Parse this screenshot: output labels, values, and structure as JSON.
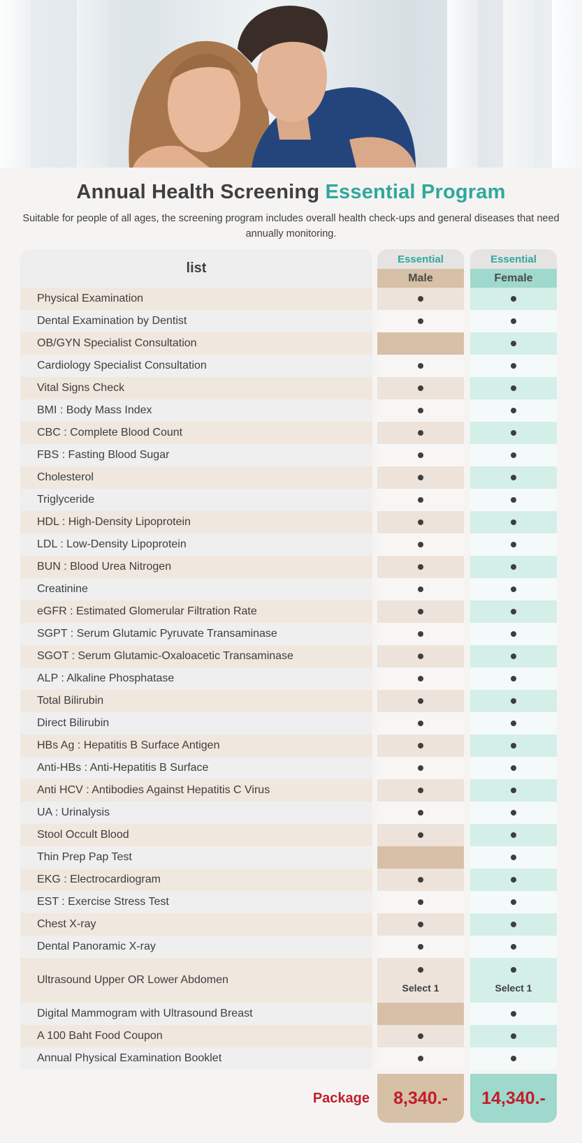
{
  "title": {
    "part1": "Annual Health Screening",
    "part2": "Essential Program"
  },
  "subtitle": "Suitable for people of all ages, the screening program includes overall health check-ups and general diseases that need annually monitoring.",
  "table": {
    "list_header": "list",
    "columns": [
      {
        "program": "Essential",
        "gender": "Male"
      },
      {
        "program": "Essential",
        "gender": "Female"
      }
    ],
    "rows": [
      {
        "label": "Physical Examination",
        "male": true,
        "female": true
      },
      {
        "label": "Dental Examination by Dentist",
        "male": true,
        "female": true
      },
      {
        "label": "OB/GYN Specialist Consultation",
        "male": false,
        "female": true
      },
      {
        "label": "Cardiology Specialist Consultation",
        "male": true,
        "female": true
      },
      {
        "label": "Vital Signs Check",
        "male": true,
        "female": true
      },
      {
        "label": "BMI : Body Mass Index",
        "male": true,
        "female": true
      },
      {
        "label": "CBC : Complete Blood Count",
        "male": true,
        "female": true
      },
      {
        "label": "FBS : Fasting Blood Sugar",
        "male": true,
        "female": true
      },
      {
        "label": "Cholesterol",
        "male": true,
        "female": true
      },
      {
        "label": "Triglyceride",
        "male": true,
        "female": true
      },
      {
        "label": "HDL : High-Density Lipoprotein",
        "male": true,
        "female": true
      },
      {
        "label": "LDL : Low-Density Lipoprotein",
        "male": true,
        "female": true
      },
      {
        "label": "BUN : Blood Urea Nitrogen",
        "male": true,
        "female": true
      },
      {
        "label": "Creatinine",
        "male": true,
        "female": true
      },
      {
        "label": "eGFR : Estimated Glomerular Filtration Rate",
        "male": true,
        "female": true
      },
      {
        "label": "SGPT : Serum Glutamic Pyruvate Transaminase",
        "male": true,
        "female": true
      },
      {
        "label": "SGOT : Serum Glutamic-Oxaloacetic Transaminase",
        "male": true,
        "female": true
      },
      {
        "label": "ALP : Alkaline Phosphatase",
        "male": true,
        "female": true
      },
      {
        "label": "Total Bilirubin",
        "male": true,
        "female": true
      },
      {
        "label": "Direct Bilirubin",
        "male": true,
        "female": true
      },
      {
        "label": "HBs Ag : Hepatitis B Surface Antigen",
        "male": true,
        "female": true
      },
      {
        "label": "Anti-HBs : Anti-Hepatitis B Surface",
        "male": true,
        "female": true
      },
      {
        "label": "Anti HCV : Antibodies Against Hepatitis C Virus",
        "male": true,
        "female": true
      },
      {
        "label": "UA : Urinalysis",
        "male": true,
        "female": true
      },
      {
        "label": "Stool Occult Blood",
        "male": true,
        "female": true
      },
      {
        "label": "Thin Prep Pap Test",
        "male": false,
        "female": true
      },
      {
        "label": "EKG : Electrocardiogram",
        "male": true,
        "female": true
      },
      {
        "label": "EST : Exercise Stress Test",
        "male": true,
        "female": true
      },
      {
        "label": "Chest X-ray",
        "male": true,
        "female": true
      },
      {
        "label": "Dental Panoramic X-ray",
        "male": true,
        "female": true
      },
      {
        "label": "Ultrasound Upper OR Lower Abdomen",
        "male": true,
        "female": true,
        "note": "Select 1"
      },
      {
        "label": "Digital Mammogram with Ultrasound Breast",
        "male": false,
        "female": true
      },
      {
        "label": "A 100 Baht Food Coupon",
        "male": true,
        "female": true
      },
      {
        "label": "Annual Physical Examination Booklet",
        "male": true,
        "female": true
      }
    ]
  },
  "package": {
    "label": "Package",
    "male_price": "8,340.-",
    "female_price": "14,340.-"
  },
  "colors": {
    "accent": "#2fa89a",
    "price": "#c11d2b",
    "male": "#d6c0a6",
    "female": "#9fd8cc"
  }
}
